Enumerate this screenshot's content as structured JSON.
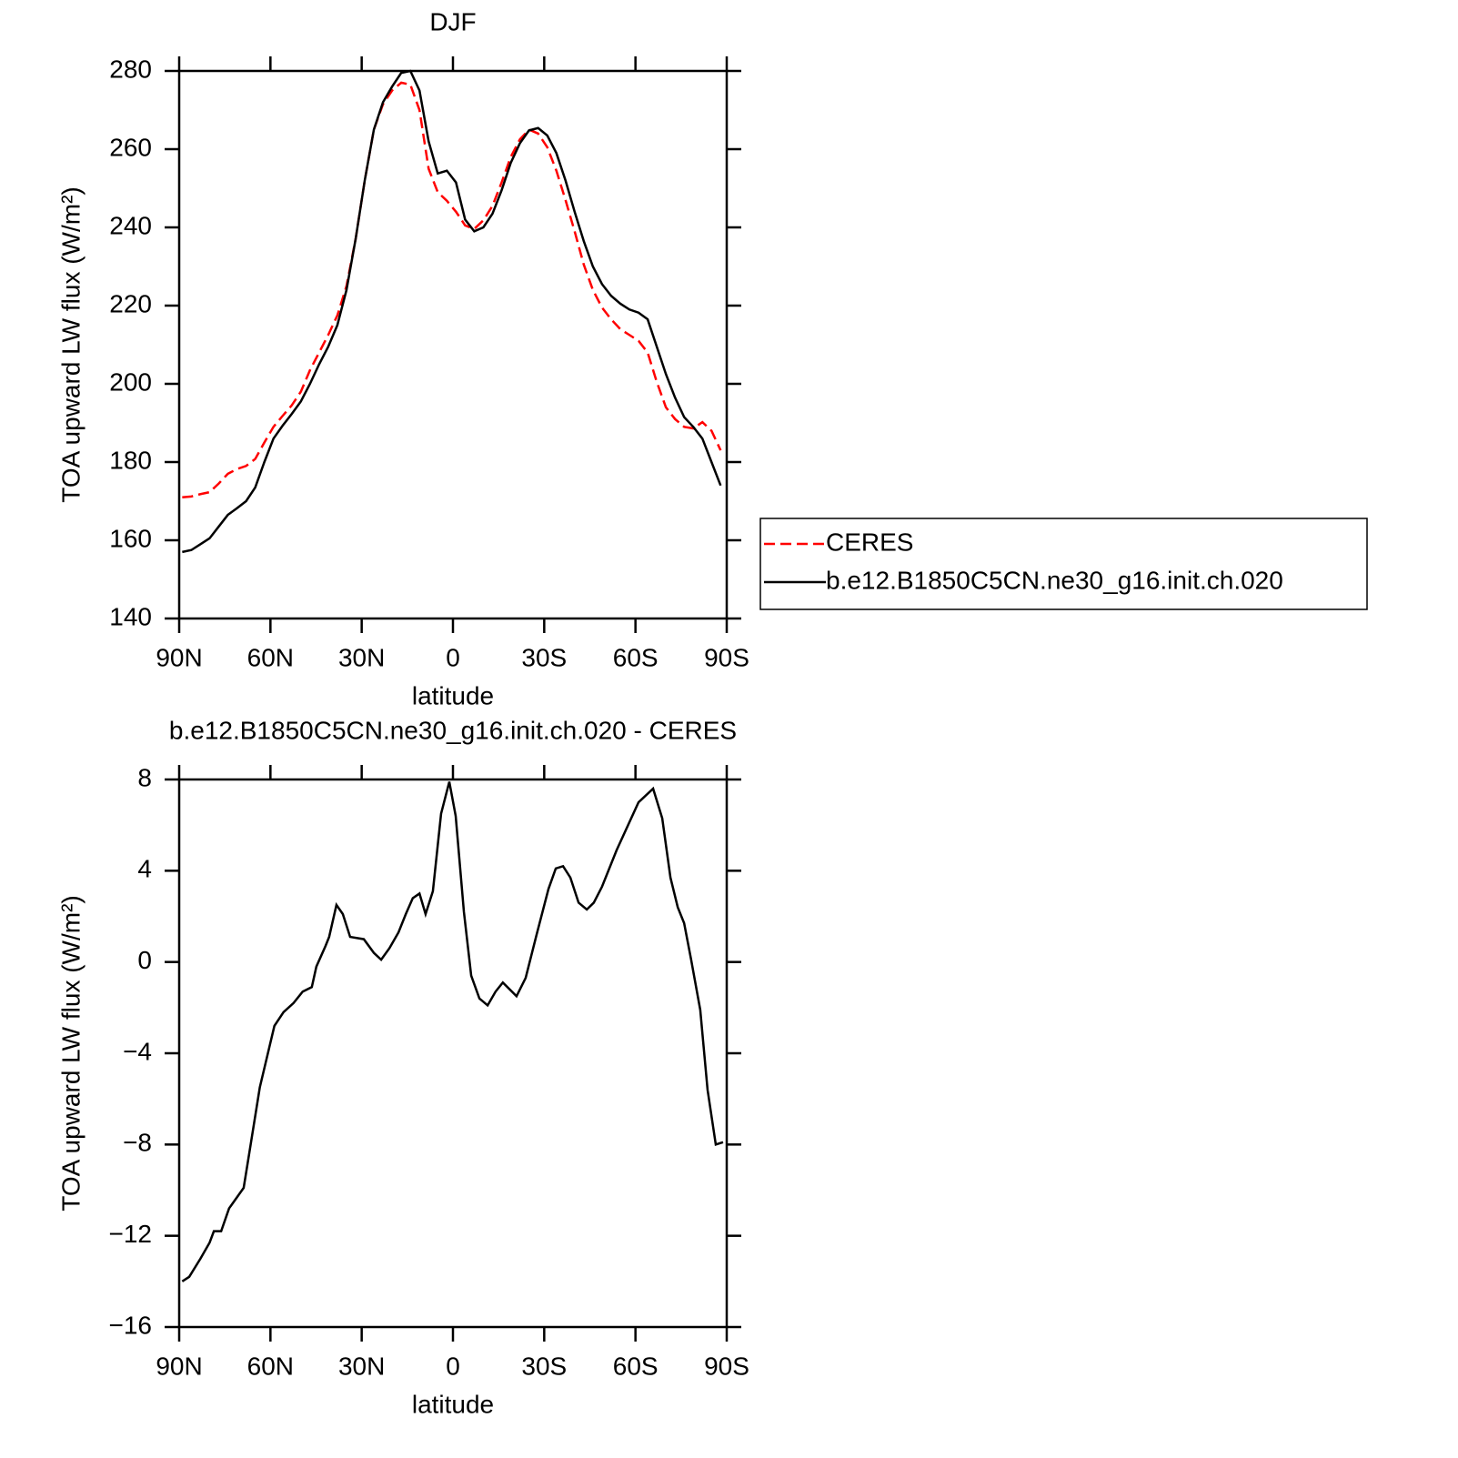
{
  "chart_data": [
    {
      "type": "line",
      "title": "DJF",
      "xlabel": "latitude",
      "ylabel": "TOA upward LW flux (W/m²)",
      "x": [
        89,
        86,
        83,
        80,
        77,
        74,
        71,
        68,
        65,
        62,
        59,
        56,
        53,
        50,
        47,
        44,
        41,
        38,
        35,
        32,
        29,
        26,
        23,
        20,
        17,
        14,
        11,
        8,
        5,
        2,
        -1,
        -4,
        -7,
        -10,
        -13,
        -16,
        -19,
        -22,
        -25,
        -28,
        -31,
        -34,
        -37,
        -40,
        -43,
        -46,
        -49,
        -52,
        -55,
        -58,
        -61,
        -64,
        -67,
        -70,
        -73,
        -76,
        -79,
        -82,
        -85,
        -88
      ],
      "series": [
        {
          "name": "CERES",
          "color": "#ff0000",
          "linestyle": "dashed",
          "values": [
            171,
            171.2,
            171.8,
            172.3,
            174.5,
            177,
            178.2,
            179,
            180.8,
            185,
            189,
            191.8,
            194.5,
            198,
            203.5,
            208,
            212.5,
            217.5,
            225,
            237,
            252,
            265,
            271.5,
            275,
            277,
            276.5,
            270,
            255,
            249,
            246.8,
            244,
            240.5,
            239.6,
            241.8,
            245.5,
            251.5,
            258,
            262.5,
            265,
            264,
            260.5,
            254.5,
            247,
            239,
            230.5,
            224,
            219.5,
            216.5,
            214,
            212.5,
            211,
            208,
            200.5,
            194,
            191,
            189,
            188.6,
            190.2,
            188,
            183
          ]
        },
        {
          "name": "b.e12.B1850C5CN.ne30_g16.init.ch.020",
          "color": "#000000",
          "linestyle": "solid",
          "values": [
            157,
            157.5,
            159,
            160.5,
            163.5,
            166.5,
            168.2,
            170,
            173.5,
            180,
            186,
            189.3,
            192.3,
            195.5,
            200,
            205,
            209.5,
            215,
            224,
            237,
            252,
            265,
            272,
            276,
            279.5,
            280,
            275,
            262,
            253.8,
            254.5,
            251.5,
            242,
            239,
            240,
            243.5,
            249.5,
            256.5,
            261.5,
            264.8,
            265.4,
            263.5,
            259,
            252,
            244,
            236.5,
            230,
            225.5,
            222.5,
            220.5,
            219,
            218.2,
            216.5,
            209.5,
            202.5,
            196.5,
            191.5,
            189,
            186,
            180,
            174
          ]
        }
      ],
      "xlim": [
        90,
        -90
      ],
      "xticks": [
        {
          "value": 90,
          "label": "90N"
        },
        {
          "value": 60,
          "label": "60N"
        },
        {
          "value": 30,
          "label": "30N"
        },
        0,
        {
          "value": -30,
          "label": "30S"
        },
        {
          "value": -60,
          "label": "60S"
        },
        {
          "value": -90,
          "label": "90S"
        }
      ],
      "ylim": [
        140,
        280
      ],
      "yticks": [
        140,
        160,
        180,
        200,
        220,
        240,
        260,
        280
      ],
      "legend": "right"
    },
    {
      "type": "line",
      "title": "b.e12.B1850C5CN.ne30_g16.init.ch.020 - CERES",
      "xlabel": "latitude",
      "ylabel": "TOA upward LW flux (W/m²)",
      "x": [
        89,
        86.7,
        83,
        80,
        78.6,
        76.2,
        73.6,
        68.8,
        66.5,
        63.5,
        58.7,
        55.7,
        52.4,
        49.4,
        46.4,
        44.9,
        41.9,
        40.7,
        38.3,
        36.2,
        33.8,
        29.3,
        26,
        23.6,
        20.9,
        17.9,
        15.5,
        13.2,
        11,
        9,
        6.6,
        3.9,
        1.2,
        -0.9,
        -3.6,
        -6,
        -8.7,
        -11.4,
        -14,
        -16.4,
        -20.9,
        -23.9,
        -27.5,
        -31.4,
        -33.8,
        -36.2,
        -38.6,
        -41.3,
        -44,
        -46.3,
        -49,
        -53.8,
        -61,
        -65.8,
        -68.8,
        -71.5,
        -73.9,
        -76,
        -78.3,
        -81.3,
        -83.7,
        -86.4,
        -88.8
      ],
      "series": [
        {
          "name": "b.e12.B1850C5CN.ne30_g16.init.ch.020 - CERES",
          "color": "#000000",
          "linestyle": "solid",
          "values": [
            -14,
            -13.8,
            -13,
            -12.3,
            -11.8,
            -11.8,
            -10.8,
            -9.9,
            -8,
            -5.5,
            -2.8,
            -2.2,
            -1.8,
            -1.3,
            -1.1,
            -0.2,
            0.7,
            1.1,
            2.5,
            2.1,
            1.1,
            1.0,
            0.4,
            0.1,
            0.6,
            1.3,
            2.1,
            2.8,
            3.0,
            2.1,
            3.1,
            6.5,
            7.9,
            6.4,
            2.2,
            -0.6,
            -1.6,
            -1.9,
            -1.3,
            -0.9,
            -1.5,
            -0.7,
            1.2,
            3.2,
            4.1,
            4.2,
            3.7,
            2.6,
            2.3,
            2.6,
            3.3,
            4.9,
            7.0,
            7.6,
            6.3,
            3.7,
            2.4,
            1.7,
            0.1,
            -2.1,
            -5.6,
            -8.0,
            -7.9
          ]
        }
      ],
      "xlim": [
        90,
        -90
      ],
      "xticks": [
        {
          "value": 90,
          "label": "90N"
        },
        {
          "value": 60,
          "label": "60N"
        },
        {
          "value": 30,
          "label": "30N"
        },
        0,
        {
          "value": -30,
          "label": "30S"
        },
        {
          "value": -60,
          "label": "60S"
        },
        {
          "value": -90,
          "label": "90S"
        }
      ],
      "ylim": [
        -16,
        8
      ],
      "yticks": [
        {
          "value": -16,
          "label": "−16"
        },
        {
          "value": -12,
          "label": "−12"
        },
        {
          "value": -8,
          "label": "−8"
        },
        {
          "value": -4,
          "label": "−4"
        },
        0,
        4,
        8
      ]
    }
  ]
}
